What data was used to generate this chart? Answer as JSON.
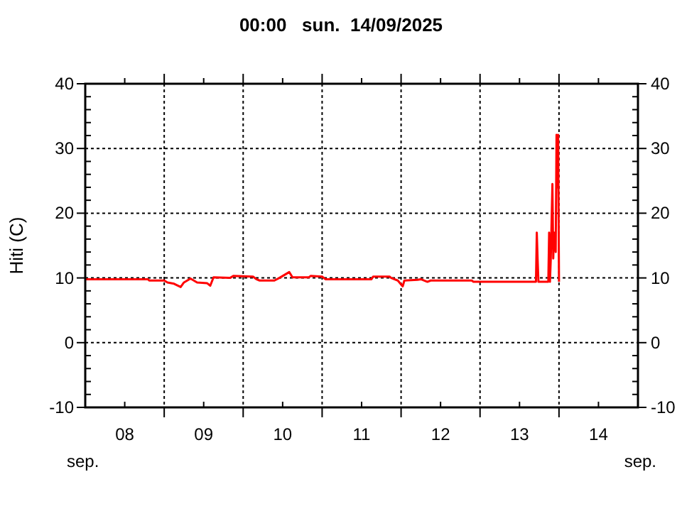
{
  "chart_data": {
    "type": "line",
    "title": "00:00   sun.  14/09/2025",
    "ylabel": "Hiti (C)",
    "xlim": [
      "2025-09-08",
      "2025-09-15"
    ],
    "xticks": [
      {
        "value": "2025-09-09",
        "label": null
      },
      {
        "value": "2025-09-10",
        "label": null
      },
      {
        "value": "2025-09-11",
        "label": null
      },
      {
        "value": "2025-09-12",
        "label": null
      },
      {
        "value": "2025-09-13",
        "label": null
      },
      {
        "value": "2025-09-14",
        "label": null
      },
      {
        "value": "2025-09-08T12:00",
        "label": "08"
      },
      {
        "value": "2025-09-09T12:00",
        "label": "09"
      },
      {
        "value": "2025-09-10T12:00",
        "label": "10"
      },
      {
        "value": "2025-09-11T12:00",
        "label": "11"
      },
      {
        "value": "2025-09-12T12:00",
        "label": "12"
      },
      {
        "value": "2025-09-13T12:00",
        "label": "13"
      },
      {
        "value": "2025-09-14T12:00",
        "label": "14"
      }
    ],
    "ylim": [
      -10,
      40
    ],
    "yticks": [
      -10,
      0,
      10,
      20,
      30,
      40
    ],
    "y2lim": [
      -10,
      40
    ],
    "y2ticks": [
      -10,
      0,
      10,
      20,
      30,
      40
    ],
    "grid": true,
    "line_style": "solid",
    "annotations": [
      "sep.",
      "sep."
    ],
    "series": [
      {
        "color": "#ff0000",
        "x": [
          "2025-09-08T00:00",
          "2025-09-08T19:00",
          "2025-09-08T19:30",
          "2025-09-09T00:00",
          "2025-09-09T01:00",
          "2025-09-09T03:00",
          "2025-09-09T05:00",
          "2025-09-09T06:00",
          "2025-09-09T08:00",
          "2025-09-09T10:00",
          "2025-09-09T13:00",
          "2025-09-09T14:00",
          "2025-09-09T15:00",
          "2025-09-09T20:00",
          "2025-09-09T21:00",
          "2025-09-10T03:00",
          "2025-09-10T04:00",
          "2025-09-10T05:00",
          "2025-09-10T09:30",
          "2025-09-10T11:00",
          "2025-09-10T14:00",
          "2025-09-10T15:00",
          "2025-09-10T20:00",
          "2025-09-10T20:30",
          "2025-09-11T00:00",
          "2025-09-11T01:00",
          "2025-09-11T15:00",
          "2025-09-11T15:30",
          "2025-09-11T20:30",
          "2025-09-11T21:00",
          "2025-09-11T23:00",
          "2025-09-12T00:30",
          "2025-09-12T01:00",
          "2025-09-12T05:00",
          "2025-09-12T06:00",
          "2025-09-12T08:00",
          "2025-09-12T09:00",
          "2025-09-12T21:30",
          "2025-09-12T22:00",
          "2025-09-13T17:00",
          "2025-09-13T17:15",
          "2025-09-13T17:30",
          "2025-09-13T17:45",
          "2025-09-13T20:45",
          "2025-09-13T21:00",
          "2025-09-13T21:15",
          "2025-09-13T21:30",
          "2025-09-13T22:00",
          "2025-09-13T22:15",
          "2025-09-13T22:30",
          "2025-09-13T23:00",
          "2025-09-13T23:15",
          "2025-09-13T23:30",
          "2025-09-13T23:45",
          "2025-09-14T00:00"
        ],
        "values": [
          9.8,
          9.8,
          9.6,
          9.6,
          9.3,
          9.1,
          8.6,
          9.3,
          9.9,
          9.3,
          9.2,
          8.8,
          10.1,
          10.0,
          10.3,
          10.2,
          9.8,
          9.6,
          9.6,
          10.0,
          10.9,
          10.1,
          10.1,
          10.3,
          10.2,
          9.8,
          9.8,
          10.2,
          10.2,
          10.0,
          9.6,
          8.7,
          9.6,
          9.7,
          9.8,
          9.4,
          9.6,
          9.6,
          9.4,
          9.4,
          17.0,
          12.9,
          9.4,
          9.4,
          17.0,
          9.4,
          12.9,
          24.5,
          13.0,
          17.0,
          14.0,
          32.1,
          24.0,
          32.1,
          9.4
        ]
      }
    ]
  }
}
